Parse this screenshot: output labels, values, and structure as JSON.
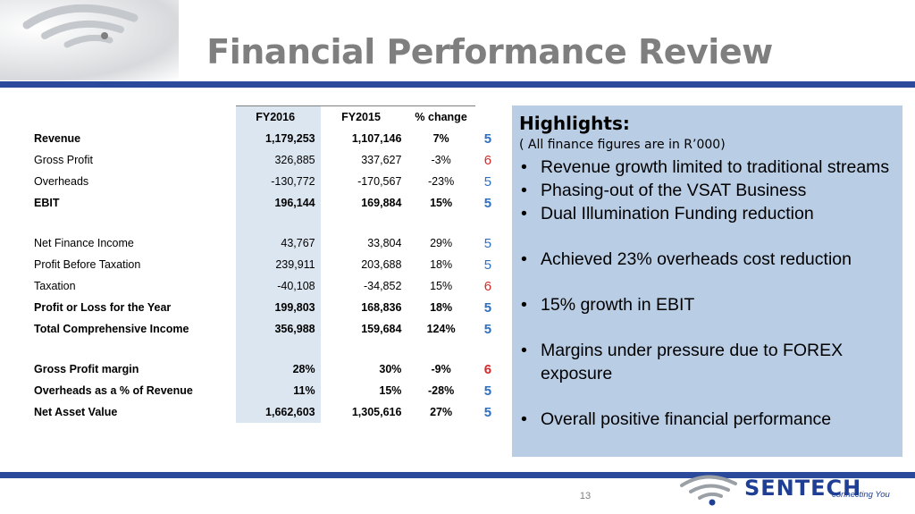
{
  "slide": {
    "title": "Financial Performance Review",
    "page_number": "13"
  },
  "table": {
    "headers": [
      "FY2016",
      "FY2015",
      "% change"
    ],
    "rows": [
      {
        "label": "Revenue",
        "fy2016": "1,179,253",
        "fy2015": "1,107,146",
        "change": "7%",
        "trend": "5",
        "trend_dir": "up",
        "bold": true
      },
      {
        "label": "Gross Profit",
        "fy2016": "326,885",
        "fy2015": "337,627",
        "change": "-3%",
        "trend": "6",
        "trend_dir": "down",
        "bold": false
      },
      {
        "label": "Overheads",
        "fy2016": "-130,772",
        "fy2015": "-170,567",
        "change": "-23%",
        "trend": "5",
        "trend_dir": "up",
        "bold": false
      },
      {
        "label": "EBIT",
        "fy2016": "196,144",
        "fy2015": "169,884",
        "change": "15%",
        "trend": "5",
        "trend_dir": "up",
        "bold": true
      },
      {
        "label": "Net Finance Income",
        "fy2016": "43,767",
        "fy2015": "33,804",
        "change": "29%",
        "trend": "5",
        "trend_dir": "up",
        "bold": false
      },
      {
        "label": "Profit Before Taxation",
        "fy2016": "239,911",
        "fy2015": "203,688",
        "change": "18%",
        "trend": "5",
        "trend_dir": "up",
        "bold": false
      },
      {
        "label": "Taxation",
        "fy2016": "-40,108",
        "fy2015": "-34,852",
        "change": "15%",
        "trend": "6",
        "trend_dir": "down",
        "bold": false
      },
      {
        "label": "Profit or Loss for the Year",
        "fy2016": "199,803",
        "fy2015": "168,836",
        "change": "18%",
        "trend": "5",
        "trend_dir": "up",
        "bold": true
      },
      {
        "label": "Total Comprehensive Income",
        "fy2016": "356,988",
        "fy2015": "159,684",
        "change": "124%",
        "trend": "5",
        "trend_dir": "up",
        "bold": true
      },
      {
        "label": "Gross Profit margin",
        "fy2016": "28%",
        "fy2015": "30%",
        "change": "-9%",
        "trend": "6",
        "trend_dir": "down",
        "bold": true
      },
      {
        "label": "Overheads as a % of Revenue",
        "fy2016": "11%",
        "fy2015": "15%",
        "change": "-28%",
        "trend": "5",
        "trend_dir": "up",
        "bold": true
      },
      {
        "label": "Net Asset Value",
        "fy2016": "1,662,603",
        "fy2015": "1,305,616",
        "change": "27%",
        "trend": "5",
        "trend_dir": "up",
        "bold": true
      }
    ]
  },
  "highlights": {
    "heading": "Highlights:",
    "subheading": "( All finance figures are in R’000)",
    "items": [
      "Revenue growth limited to traditional streams",
      "Phasing-out of the VSAT Business",
      "Dual Illumination Funding reduction",
      "Achieved 23% overheads cost reduction",
      "15% growth in EBIT",
      "Margins under pressure due to FOREX exposure",
      "Overall positive financial performance"
    ]
  },
  "logo": {
    "name": "SENTECH",
    "tagline": "connecting You"
  },
  "colors": {
    "brand_blue": "#2c4a9c",
    "panel_blue": "#b9cde5",
    "column_shade": "#dce6f1",
    "title_gray": "#7f7f7f",
    "up_blue": "#2e6fc0",
    "down_red": "#d42a2a"
  },
  "icons": {
    "corner": "wifi-signal-icon",
    "logo": "sentech-logo-mark-icon"
  }
}
